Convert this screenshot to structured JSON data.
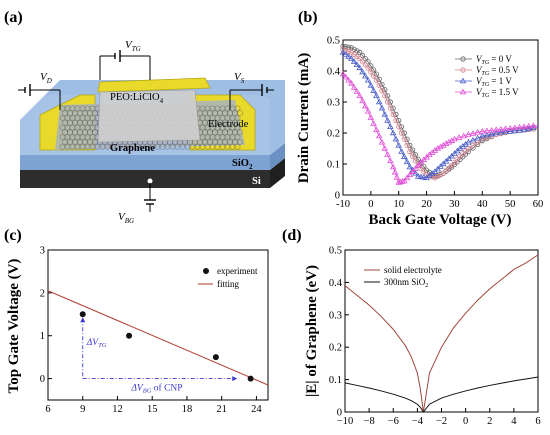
{
  "panels": {
    "a": {
      "label": "(a)",
      "labels": {
        "vtg": "V",
        "vtg_sub": "TG",
        "vd": "V",
        "vd_sub": "D",
        "vs": "V",
        "vs_sub": "S",
        "vbg": "V",
        "vbg_sub": "BG",
        "electrolyte": "PEO:LiClO",
        "electrolyte_sub": "4",
        "electrode": "Electrode",
        "graphene": "Graphene",
        "sio2": "SiO",
        "sio2_sub": "2",
        "si": "Si"
      },
      "colors": {
        "electrode": "#e8d92a",
        "sio2": "#8fb1d9",
        "si": "#2d2d2d",
        "electrolyte": "#c9c9c9"
      }
    },
    "b": {
      "label": "(b)",
      "chart_data": {
        "type": "line",
        "xlabel": "Back Gate Voltage (V)",
        "ylabel": "Drain Current (mA)",
        "xlim": [
          -10,
          60
        ],
        "ylim": [
          0,
          0.5
        ],
        "xticks": [
          -10,
          0,
          10,
          20,
          30,
          40,
          50,
          60
        ],
        "yticks": [
          0,
          0.1,
          0.2,
          0.3,
          0.4,
          0.5
        ],
        "series": [
          {
            "name": "V_TG = 0 V",
            "legend_main": "V",
            "legend_sub": "TG",
            "legend_rest": " = 0 V",
            "color": "#666666",
            "marker": "circle",
            "x": [
              -10,
              -7,
              -4,
              -1,
              2,
              5,
              8,
              11,
              14,
              17,
              20,
              23,
              26,
              29,
              32,
              35,
              40,
              45,
              50,
              55,
              60
            ],
            "y": [
              0.48,
              0.475,
              0.46,
              0.43,
              0.39,
              0.34,
              0.28,
              0.22,
              0.16,
              0.115,
              0.08,
              0.06,
              0.07,
              0.09,
              0.115,
              0.14,
              0.175,
              0.195,
              0.205,
              0.21,
              0.215
            ]
          },
          {
            "name": "V_TG = 0.5 V",
            "legend_main": "V",
            "legend_sub": "TG",
            "legend_rest": " = 0.5 V",
            "color": "#d4848e",
            "marker": "circle",
            "x": [
              -10,
              -7,
              -4,
              -1,
              2,
              5,
              8,
              11,
              14,
              17,
              20,
              23,
              26,
              29,
              32,
              35,
              40,
              45,
              50,
              55,
              60
            ],
            "y": [
              0.47,
              0.46,
              0.44,
              0.41,
              0.37,
              0.32,
              0.26,
              0.2,
              0.14,
              0.095,
              0.065,
              0.055,
              0.07,
              0.095,
              0.125,
              0.15,
              0.18,
              0.195,
              0.205,
              0.21,
              0.215
            ]
          },
          {
            "name": "V_TG = 1 V",
            "legend_main": "V",
            "legend_sub": "TG",
            "legend_rest": " = 1 V",
            "color": "#4a5ec9",
            "marker": "triangle",
            "x": [
              -10,
              -7,
              -4,
              -1,
              2,
              5,
              8,
              11,
              14,
              17,
              20,
              23,
              26,
              29,
              32,
              35,
              40,
              45,
              50,
              55,
              60
            ],
            "y": [
              0.46,
              0.44,
              0.41,
              0.37,
              0.32,
              0.26,
              0.2,
              0.14,
              0.09,
              0.06,
              0.055,
              0.075,
              0.1,
              0.125,
              0.15,
              0.17,
              0.19,
              0.2,
              0.205,
              0.21,
              0.22
            ]
          },
          {
            "name": "V_TG = 1.5 V",
            "legend_main": "V",
            "legend_sub": "TG",
            "legend_rest": " = 1.5 V",
            "color": "#e04fd6",
            "marker": "triangle",
            "x": [
              -10,
              -7,
              -4,
              -1,
              2,
              5,
              8,
              10,
              12,
              15,
              18,
              21,
              24,
              27,
              30,
              35,
              40,
              45,
              50,
              55,
              60
            ],
            "y": [
              0.39,
              0.36,
              0.32,
              0.27,
              0.21,
              0.15,
              0.09,
              0.04,
              0.045,
              0.075,
              0.105,
              0.13,
              0.15,
              0.165,
              0.18,
              0.195,
              0.205,
              0.21,
              0.215,
              0.22,
              0.225
            ]
          }
        ]
      }
    },
    "c": {
      "label": "(c)",
      "chart_data": {
        "type": "scatter",
        "xlabel": "",
        "ylabel": "Top Gate Voltage (V)",
        "xlim": [
          6,
          25
        ],
        "ylim": [
          -0.5,
          3
        ],
        "xticks": [
          6,
          9,
          12,
          15,
          18,
          21,
          24
        ],
        "yticks": [
          0,
          1,
          2,
          3
        ],
        "experiment": {
          "name": "experiment",
          "x": [
            9,
            13,
            20.5,
            23.5
          ],
          "y": [
            1.5,
            1,
            0.5,
            0
          ]
        },
        "fitting": {
          "name": "fitting",
          "x": [
            6,
            25
          ],
          "y": [
            2.05,
            -0.15
          ],
          "color": "#b5473a"
        },
        "annotations": {
          "dvtg": "ΔV",
          "dvtg_sub": "TG",
          "dvbg": "ΔV",
          "dvbg_sub": "BG",
          "dvbg_rest": " of CNP"
        }
      }
    },
    "d": {
      "label": "(d)",
      "chart_data": {
        "type": "line",
        "xlabel": "",
        "ylabel": "|E| of Graphene (eV)",
        "xlim": [
          -10,
          6
        ],
        "ylim": [
          0,
          0.5
        ],
        "xticks": [
          -10,
          -8,
          -6,
          -4,
          -2,
          0,
          2,
          4,
          6
        ],
        "yticks": [
          0,
          0.1,
          0.2,
          0.3,
          0.4,
          0.5
        ],
        "series": [
          {
            "name": "solid electrolyte",
            "color": "#a0473d",
            "x": [
              -10,
              -9,
              -8,
              -7,
              -6,
              -5,
              -4.5,
              -4,
              -3.75,
              -3.5,
              -3,
              -2,
              -1,
              0,
              1,
              2,
              3,
              4,
              5,
              6
            ],
            "y": [
              0.39,
              0.36,
              0.33,
              0.295,
              0.255,
              0.205,
              0.17,
              0.12,
              0.07,
              0.0,
              0.12,
              0.2,
              0.26,
              0.305,
              0.345,
              0.38,
              0.41,
              0.44,
              0.46,
              0.485
            ]
          },
          {
            "name": "300nm SiO",
            "sub": "2",
            "color": "#111111",
            "x": [
              -10,
              -9,
              -8,
              -7,
              -6,
              -5,
              -4.5,
              -4,
              -3.75,
              -3.5,
              -3,
              -2,
              -1,
              0,
              1,
              2,
              3,
              4,
              5,
              6
            ],
            "y": [
              0.09,
              0.082,
              0.074,
              0.065,
              0.055,
              0.043,
              0.035,
              0.024,
              0.014,
              0.0,
              0.024,
              0.043,
              0.055,
              0.065,
              0.074,
              0.082,
              0.089,
              0.096,
              0.102,
              0.108
            ]
          }
        ]
      }
    }
  }
}
